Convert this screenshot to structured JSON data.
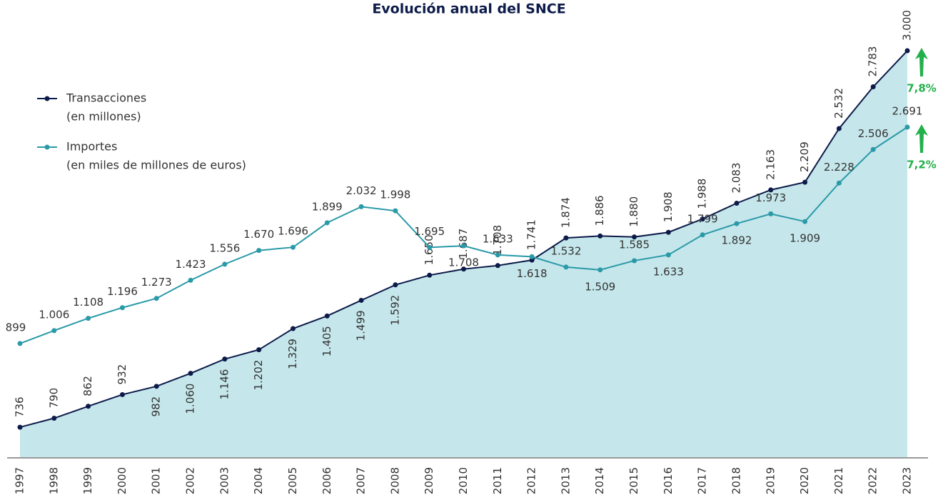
{
  "chart_data": {
    "type": "line",
    "title": "Evolución anual del SNCE",
    "categories": [
      "1997",
      "1998",
      "1999",
      "2000",
      "2001",
      "2002",
      "2003",
      "2004",
      "2005",
      "2006",
      "2007",
      "2008",
      "2009",
      "2010",
      "2011",
      "2012",
      "2013",
      "2014",
      "2015",
      "2016",
      "2017",
      "2018",
      "2019",
      "2020",
      "2021",
      "2022",
      "2023"
    ],
    "series": [
      {
        "name": "Transacciones",
        "unit": "(en millones)",
        "color": "#0d1b4a",
        "area_color": "#c5e6ea",
        "axis": "y",
        "values": [
          736,
          790,
          862,
          932,
          982,
          1060,
          1146,
          1202,
          1329,
          1405,
          1499,
          1592,
          1650,
          1687,
          1708,
          1741,
          1874,
          1886,
          1880,
          1908,
          1988,
          2083,
          2163,
          2209,
          2532,
          2783,
          3000
        ],
        "value_labels": [
          "736",
          "790",
          "862",
          "932",
          "982",
          "1.060",
          "1.146",
          "1.202",
          "1.329",
          "1.405",
          "1.499",
          "1.592",
          "1.650",
          "1.687",
          "1.708",
          "1.741",
          "1.874",
          "1.886",
          "1.880",
          "1.908",
          "1.988",
          "2.083",
          "2.163",
          "2.209",
          "2.532",
          "2.783",
          "3.000"
        ]
      },
      {
        "name": "Importes",
        "unit": "(en miles de millones de euros)",
        "color": "#2a9aa8",
        "axis": "y2",
        "values": [
          899,
          1006,
          1108,
          1196,
          1273,
          1423,
          1556,
          1670,
          1696,
          1899,
          2032,
          1998,
          1695,
          1708,
          1633,
          1618,
          1532,
          1509,
          1585,
          1633,
          1799,
          1892,
          1973,
          1909,
          2228,
          2506,
          2691
        ],
        "value_labels": [
          "899",
          "1.006",
          "1.108",
          "1.196",
          "1.273",
          "1.423",
          "1.556",
          "1.670",
          "1.696",
          "1.899",
          "2.032",
          "1.998",
          "1.695",
          "1.708",
          "1.633",
          "1.618",
          "1.532",
          "1.509",
          "1.585",
          "1.633",
          "1.799",
          "1.892",
          "1.973",
          "1.909",
          "2.228",
          "2.506",
          "2.691"
        ]
      }
    ],
    "ylim": [
      556,
      3000
    ],
    "y2lim": [
      -42,
      3324
    ],
    "annotations": [
      {
        "text": "7,8%",
        "series": 0
      },
      {
        "text": "7,2%",
        "series": 1
      }
    ]
  }
}
